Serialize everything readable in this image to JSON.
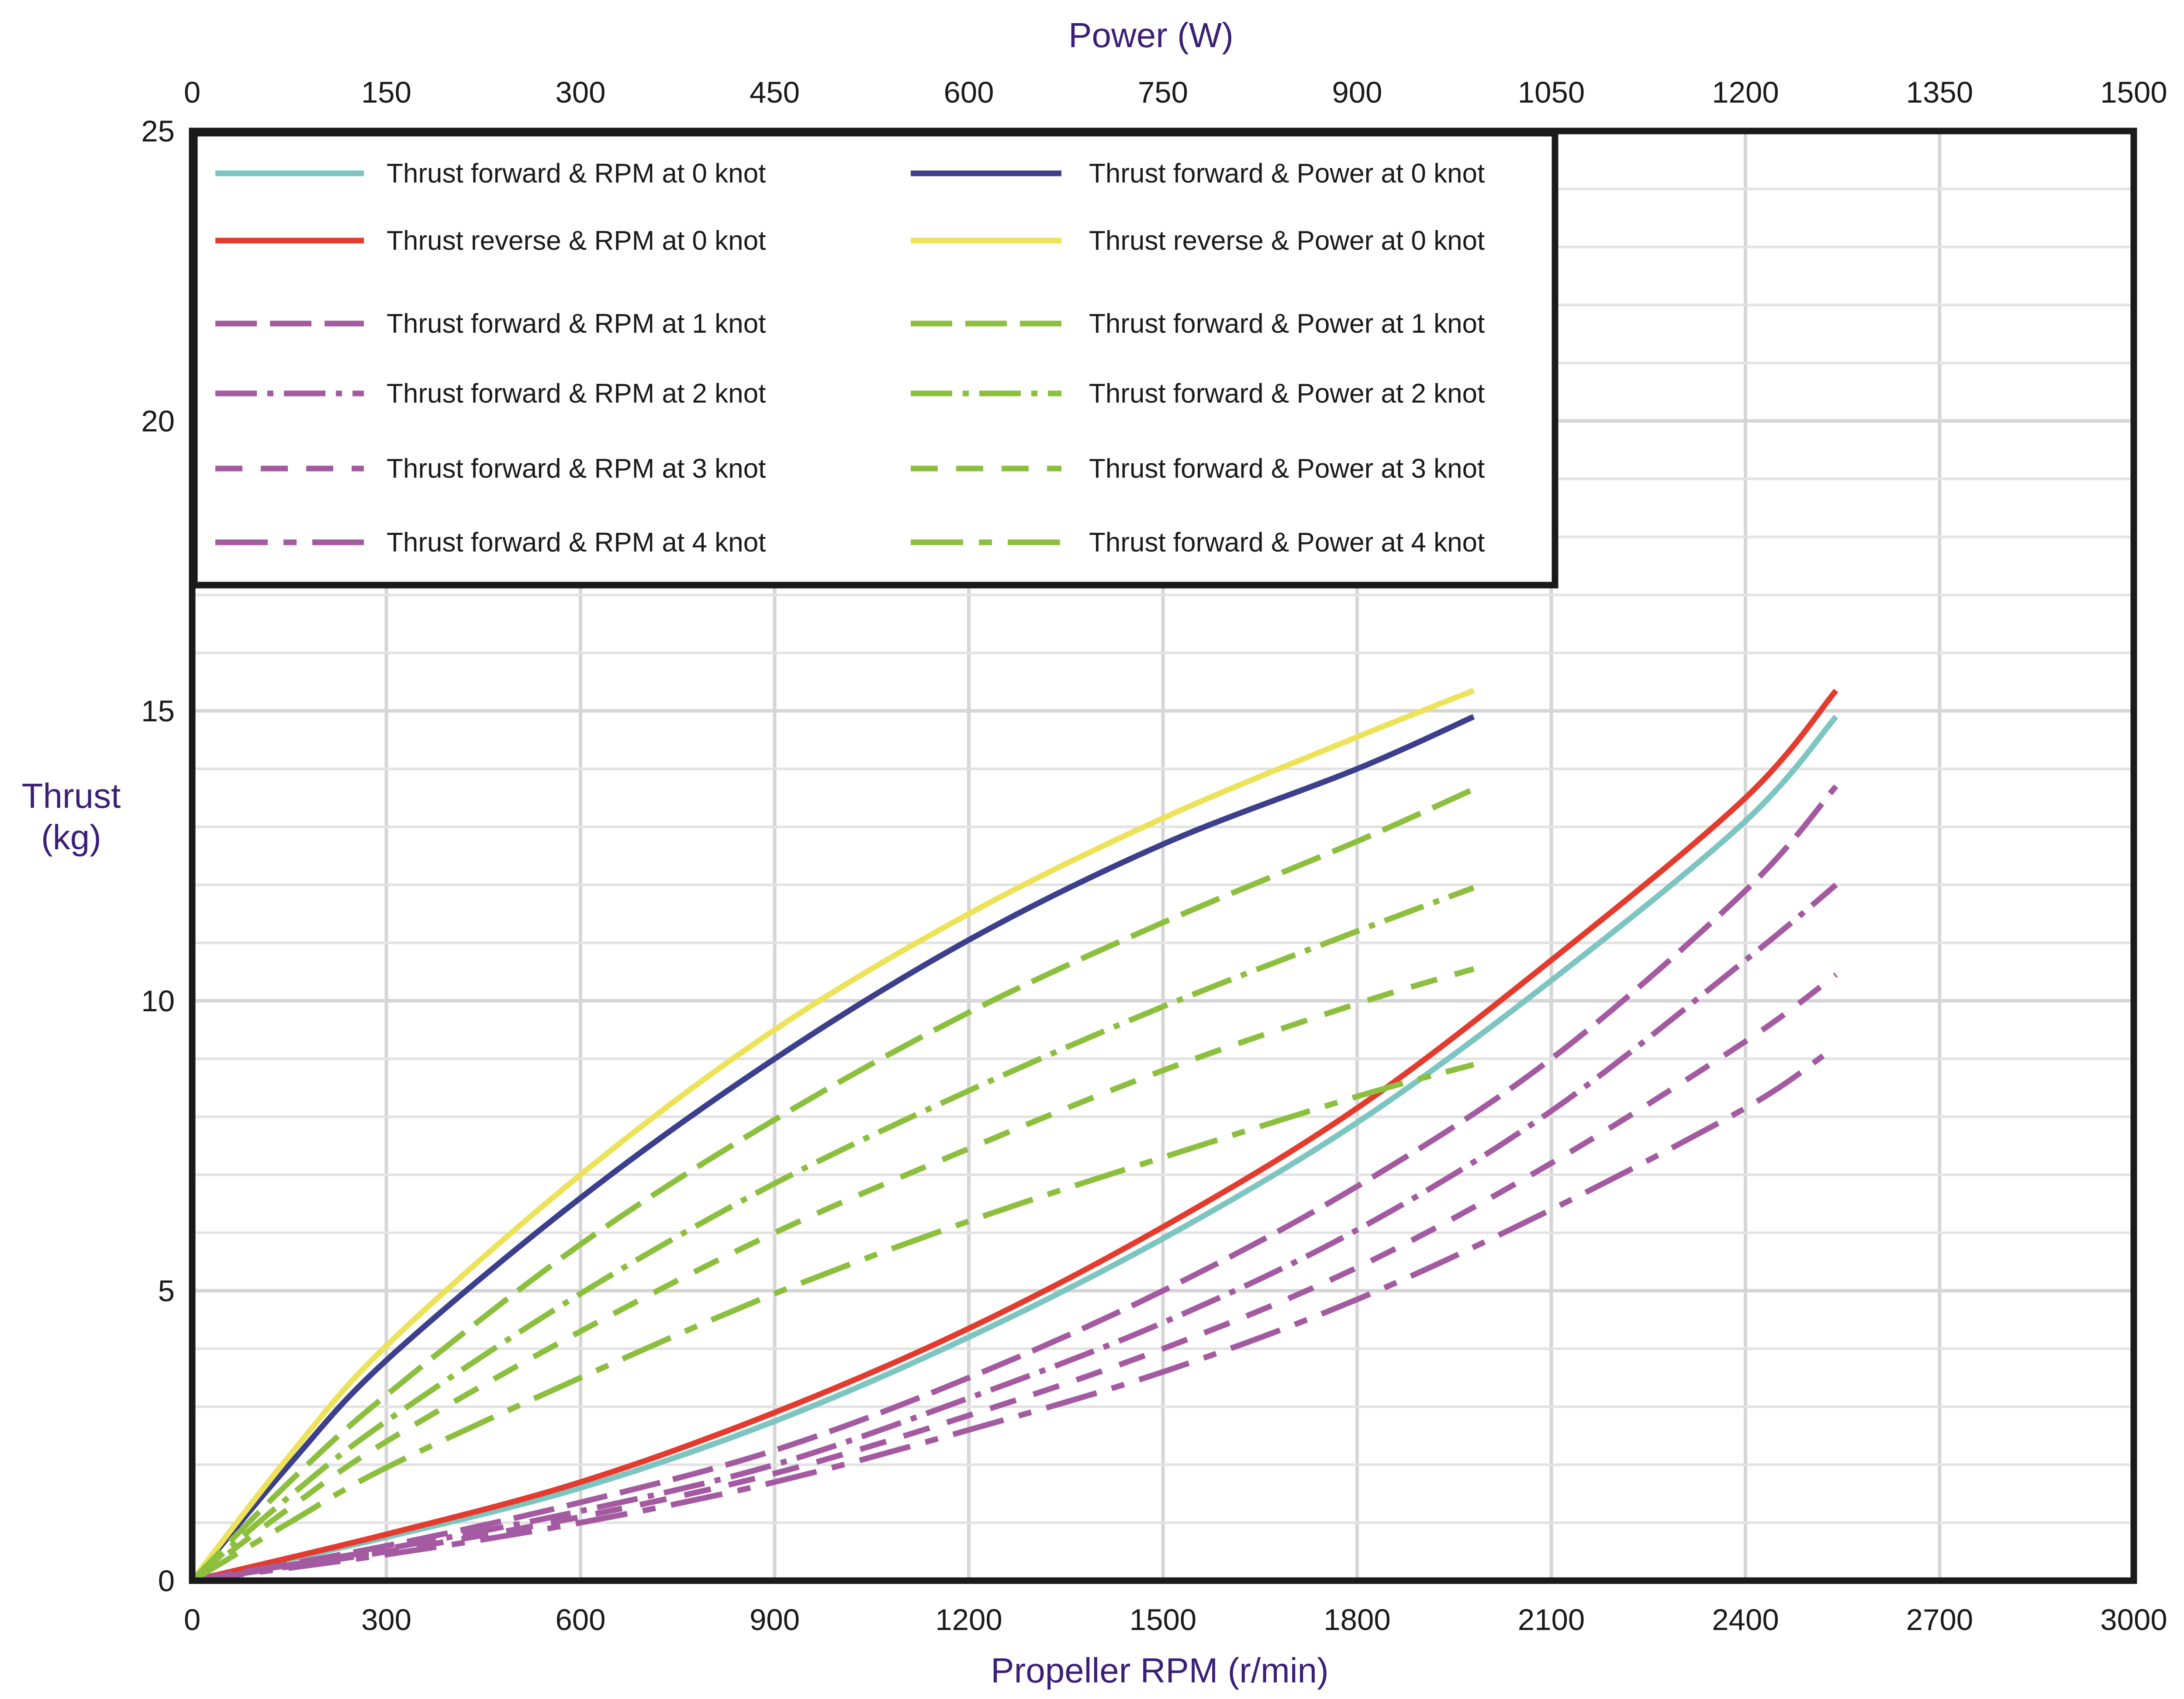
{
  "chart_data": {
    "type": "line",
    "title": "",
    "top_axis": {
      "label": "Power (W)",
      "range": [
        0,
        1500
      ],
      "ticks": [
        "0",
        "150",
        "300",
        "450",
        "600",
        "750",
        "900",
        "1050",
        "1200",
        "1350",
        "1500"
      ]
    },
    "x_axis": {
      "label": "Propeller RPM (r/min)",
      "range": [
        0,
        3000
      ],
      "ticks": [
        "0",
        "300",
        "600",
        "900",
        "1200",
        "1500",
        "1800",
        "2100",
        "2400",
        "2700",
        "3000"
      ]
    },
    "y_axis": {
      "label_line1": "Thrust",
      "label_line2": "(kg)",
      "range": [
        0,
        25
      ],
      "ticks": [
        "0",
        "5",
        "10",
        "15",
        "20",
        "25"
      ]
    },
    "grid": true,
    "legend_position": "top-left",
    "colors": {
      "teal": "#7cc5c0",
      "red": "#e33b2e",
      "navy": "#3b3f8c",
      "yellow": "#ede35a",
      "purple": "#a45aa0",
      "green": "#8dbf3f",
      "axis": "#1a1a1a",
      "title": "#3b1f77"
    },
    "series": [
      {
        "name": "Thrust forward & RPM at 0 knot",
        "axis": "rpm",
        "color": "#7cc5c0",
        "dash": "solid",
        "x": [
          0,
          300,
          600,
          900,
          1200,
          1500,
          1800,
          2100,
          2400,
          2540
        ],
        "y": [
          0,
          0.75,
          1.6,
          2.75,
          4.2,
          5.9,
          7.9,
          10.35,
          13.1,
          14.9
        ]
      },
      {
        "name": "Thrust reverse  & RPM at 0 knot",
        "axis": "rpm",
        "color": "#e33b2e",
        "dash": "solid",
        "x": [
          0,
          300,
          600,
          900,
          1200,
          1500,
          1800,
          2100,
          2400,
          2540
        ],
        "y": [
          0,
          0.8,
          1.7,
          2.9,
          4.35,
          6.1,
          8.15,
          10.7,
          13.5,
          15.35
        ]
      },
      {
        "name": "Thrust forward & RPM at 1 knot",
        "axis": "rpm",
        "color": "#a45aa0",
        "dash": "long-dash",
        "x": [
          0,
          300,
          600,
          900,
          1200,
          1500,
          1800,
          2100,
          2400,
          2540
        ],
        "y": [
          0,
          0.6,
          1.35,
          2.25,
          3.5,
          5.0,
          6.8,
          9.0,
          11.9,
          13.7
        ]
      },
      {
        "name": "Thrust forward & RPM at 2 knot",
        "axis": "rpm",
        "color": "#a45aa0",
        "dash": "dash-dot",
        "x": [
          0,
          300,
          600,
          900,
          1200,
          1500,
          1800,
          2100,
          2400,
          2540
        ],
        "y": [
          0,
          0.55,
          1.2,
          2.0,
          3.15,
          4.45,
          6.05,
          8.1,
          10.7,
          12.0
        ]
      },
      {
        "name": "Thrust forward & RPM at 3 knot",
        "axis": "rpm",
        "color": "#a45aa0",
        "dash": "dash",
        "x": [
          0,
          300,
          600,
          900,
          1200,
          1500,
          1800,
          2100,
          2400,
          2540
        ],
        "y": [
          0,
          0.5,
          1.1,
          1.85,
          2.85,
          4.0,
          5.4,
          7.2,
          9.3,
          10.45
        ]
      },
      {
        "name": "Thrust forward & RPM at 4 knot",
        "axis": "rpm",
        "color": "#a45aa0",
        "dash": "long-dash-dot",
        "x": [
          0,
          300,
          600,
          900,
          1200,
          1500,
          1800,
          2100,
          2400,
          2520
        ],
        "y": [
          0,
          0.45,
          1.0,
          1.7,
          2.6,
          3.6,
          4.85,
          6.4,
          8.15,
          9.05
        ]
      },
      {
        "name": "Thrust forward & Power at 0 knot",
        "axis": "power",
        "color": "#3b3f8c",
        "dash": "solid",
        "x": [
          0,
          75,
          150,
          300,
          450,
          600,
          750,
          900,
          990
        ],
        "y": [
          0,
          2.0,
          3.8,
          6.6,
          9.0,
          11.05,
          12.7,
          14.0,
          14.9
        ]
      },
      {
        "name": "Thrust reverse & Power at 0 knot",
        "axis": "power",
        "color": "#ede35a",
        "dash": "solid",
        "x": [
          0,
          75,
          150,
          300,
          450,
          600,
          750,
          900,
          990
        ],
        "y": [
          0,
          2.15,
          4.05,
          7.0,
          9.5,
          11.5,
          13.15,
          14.55,
          15.35
        ]
      },
      {
        "name": "Thrust forward & Power at 1 knot",
        "axis": "power",
        "color": "#8dbf3f",
        "dash": "long-dash",
        "x": [
          0,
          75,
          150,
          300,
          450,
          600,
          750,
          900,
          990
        ],
        "y": [
          0,
          1.7,
          3.2,
          5.8,
          7.95,
          9.8,
          11.35,
          12.75,
          13.65
        ]
      },
      {
        "name": "Thrust forward & Power at 2 knot",
        "axis": "power",
        "color": "#8dbf3f",
        "dash": "dash-dot",
        "x": [
          0,
          75,
          150,
          300,
          450,
          600,
          750,
          900,
          990
        ],
        "y": [
          0,
          1.45,
          2.75,
          4.95,
          6.85,
          8.45,
          9.9,
          11.2,
          11.95
        ]
      },
      {
        "name": "Thrust forward & Power at 3 knot",
        "axis": "power",
        "color": "#8dbf3f",
        "dash": "dash",
        "x": [
          0,
          75,
          150,
          300,
          450,
          600,
          750,
          900,
          990
        ],
        "y": [
          0,
          1.25,
          2.4,
          4.3,
          6.0,
          7.45,
          8.8,
          9.95,
          10.55
        ]
      },
      {
        "name": "Thrust forward & Power at 4 knot",
        "axis": "power",
        "color": "#8dbf3f",
        "dash": "long-dash-dot",
        "x": [
          0,
          75,
          150,
          300,
          450,
          600,
          750,
          900,
          990
        ],
        "y": [
          0,
          1.0,
          1.95,
          3.5,
          4.95,
          6.2,
          7.3,
          8.35,
          8.9
        ]
      }
    ]
  }
}
